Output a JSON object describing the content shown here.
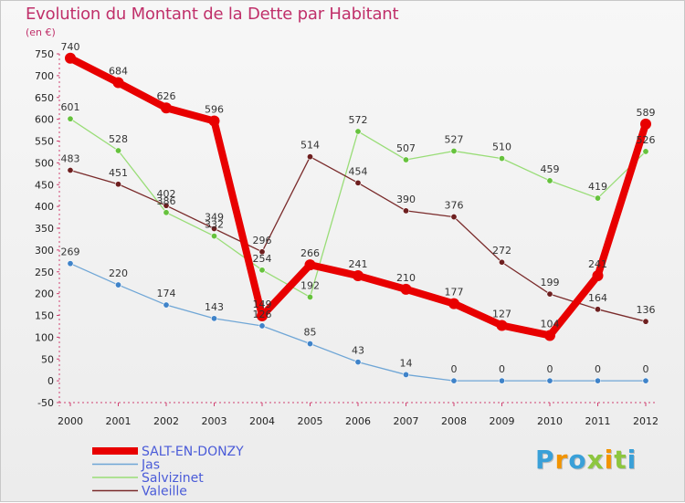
{
  "header": {
    "title": "Evolution du Montant de la Dette par Habitant",
    "unit": "(en €)"
  },
  "logo": {
    "text": "Proxiti",
    "colors": [
      "#3aa0d8",
      "#f29400",
      "#3aa0d8",
      "#8dc63f",
      "#f29400",
      "#8dc63f",
      "#3aa0d8"
    ]
  },
  "chart_data": {
    "type": "line",
    "title": "Evolution du Montant de la Dette par Habitant",
    "ylabel": "(en €)",
    "xlabel": "",
    "x": [
      "2000",
      "2001",
      "2002",
      "2003",
      "2004",
      "2005",
      "2006",
      "2007",
      "2008",
      "2009",
      "2010",
      "2011",
      "2012"
    ],
    "ylim": [
      -50,
      750
    ],
    "yticks": [
      "750",
      "700",
      "650",
      "600",
      "550",
      "500",
      "450",
      "400",
      "350",
      "300",
      "250",
      "200",
      "150",
      "100",
      "50",
      "0",
      "-50"
    ],
    "grid": false,
    "legend_position": "bottom-left",
    "series": [
      {
        "name": "SALT-EN-DONZY",
        "color": "#e80000",
        "point_color": "#e80000",
        "emphasis": true,
        "values": [
          740,
          684,
          626,
          596,
          149,
          266,
          241,
          210,
          177,
          127,
          104,
          241,
          589
        ],
        "labels": [
          "740",
          "684",
          "626",
          "596",
          "149",
          "266",
          "241",
          "210",
          "177",
          "127",
          "104",
          "241",
          "589"
        ]
      },
      {
        "name": "Jas",
        "color": "#6fa6d6",
        "point_color": "#3f83c9",
        "emphasis": false,
        "values": [
          269,
          220,
          174,
          143,
          126,
          85,
          43,
          14,
          0,
          0,
          0,
          0,
          0
        ],
        "labels": [
          "269",
          "220",
          "174",
          "143",
          "126",
          "85",
          "43",
          "14",
          "0",
          "0",
          "0",
          "0",
          "0"
        ]
      },
      {
        "name": "Salvizinet",
        "color": "#99dd77",
        "point_color": "#66c23d",
        "emphasis": false,
        "values": [
          601,
          528,
          386,
          332,
          254,
          192,
          572,
          507,
          527,
          510,
          459,
          419,
          526
        ],
        "labels": [
          "601",
          "528",
          "386",
          "332",
          "254",
          "192",
          "572",
          "507",
          "527",
          "510",
          "459",
          "419",
          "526"
        ]
      },
      {
        "name": "Valeille",
        "color": "#7a2b2b",
        "point_color": "#6e1f1f",
        "emphasis": false,
        "values": [
          483,
          451,
          402,
          349,
          296,
          514,
          454,
          390,
          376,
          272,
          199,
          164,
          136
        ],
        "labels": [
          "483",
          "451",
          "402",
          "349",
          "296",
          "514",
          "454",
          "390",
          "376",
          "272",
          "199",
          "164",
          "136"
        ]
      }
    ]
  }
}
